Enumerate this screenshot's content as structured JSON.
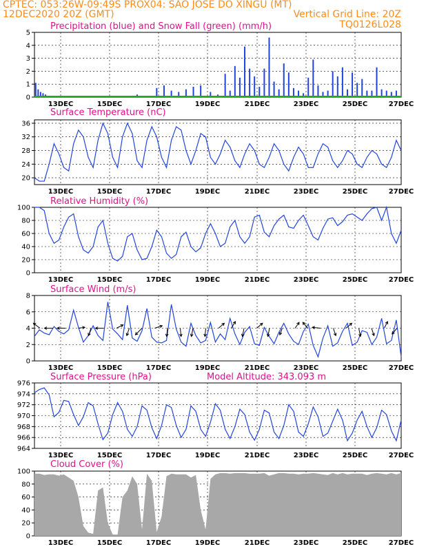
{
  "header": {
    "line1": "CPTEC:  053:26W-09:49S   PROX04: SAO JOSE DO XINGU (MT)",
    "line2_left": "12DEC2020 20Z (GMT)",
    "line2_right": "Vertical Grid Line: 20Z",
    "line3_right": "TQ0126L028"
  },
  "colors": {
    "header": "#ff8c1a",
    "title": "#e0118a",
    "series": "#2244dd",
    "snow": "#22aa22",
    "cloud": "#a8a8a8"
  },
  "date_labels": [
    "13DEC",
    "15DEC",
    "17DEC",
    "19DEC",
    "21DEC",
    "23DEC",
    "25DEC",
    "27DEC"
  ],
  "chart_data": [
    {
      "id": "precip",
      "type": "bar",
      "title": "Precipitation (blue) and Snow Fall (green) (mm/h)",
      "ylim": [
        0,
        5
      ],
      "yticks": [
        0,
        1,
        2,
        3,
        4,
        5
      ],
      "x_range": [
        0,
        15
      ],
      "grid": true,
      "series": [
        {
          "name": "Precipitation",
          "x": [
            0.05,
            0.15,
            0.25,
            0.35,
            0.45,
            0.55,
            3.9,
            4.2,
            5.0,
            5.3,
            5.6,
            5.9,
            6.2,
            6.5,
            6.8,
            7.2,
            7.5,
            7.8,
            8.0,
            8.2,
            8.4,
            8.6,
            8.8,
            9.0,
            9.2,
            9.4,
            9.6,
            9.8,
            10.0,
            10.2,
            10.4,
            10.6,
            10.8,
            11.0,
            11.2,
            11.4,
            11.6,
            11.8,
            12.0,
            12.2,
            12.4,
            12.6,
            12.8,
            13.0,
            13.2,
            13.4,
            13.6,
            13.8,
            14.0,
            14.2,
            14.4,
            14.6,
            14.8
          ],
          "values": [
            1.1,
            0.6,
            0.4,
            0.3,
            0.2,
            0.1,
            0.05,
            0.2,
            0.7,
            0.9,
            0.5,
            0.4,
            0.6,
            0.8,
            0.9,
            0.4,
            0.2,
            1.8,
            0.5,
            2.4,
            1.5,
            3.9,
            2.2,
            1.6,
            0.8,
            2.2,
            4.6,
            1.2,
            0.6,
            2.6,
            1.9,
            0.7,
            0.5,
            0.3,
            1.5,
            2.9,
            0.9,
            0.4,
            0.5,
            2.0,
            1.6,
            2.3,
            0.6,
            1.9,
            1.1,
            1.4,
            0.5,
            0.5,
            2.3,
            0.6,
            0.5,
            0.4,
            0.5
          ]
        },
        {
          "name": "Snow Fall",
          "values": [
            0
          ]
        }
      ]
    },
    {
      "id": "temp",
      "type": "line",
      "title": "Surface Temperature (nC)",
      "ylim": [
        18,
        37
      ],
      "yticks": [
        20,
        24,
        28,
        32,
        36
      ],
      "x_range": [
        0,
        15
      ],
      "grid": true,
      "series": [
        {
          "name": "Surface Temperature",
          "x": [
            0,
            0.2,
            0.4,
            0.6,
            0.8,
            1.0,
            1.2,
            1.4,
            1.6,
            1.8,
            2.0,
            2.2,
            2.4,
            2.6,
            2.8,
            3.0,
            3.2,
            3.4,
            3.6,
            3.8,
            4.0,
            4.2,
            4.4,
            4.6,
            4.8,
            5.0,
            5.2,
            5.4,
            5.6,
            5.8,
            6.0,
            6.2,
            6.4,
            6.6,
            6.8,
            7.0,
            7.2,
            7.4,
            7.6,
            7.8,
            8.0,
            8.2,
            8.4,
            8.6,
            8.8,
            9.0,
            9.2,
            9.4,
            9.6,
            9.8,
            10.0,
            10.2,
            10.4,
            10.6,
            10.8,
            11.0,
            11.2,
            11.4,
            11.6,
            11.8,
            12.0,
            12.2,
            12.4,
            12.6,
            12.8,
            13.0,
            13.2,
            13.4,
            13.6,
            13.8,
            14.0,
            14.2,
            14.4,
            14.6,
            14.8,
            15.0
          ],
          "values": [
            20,
            19,
            19,
            24,
            30,
            27,
            23,
            22,
            30,
            34,
            32,
            26,
            23,
            31,
            36,
            33,
            26,
            23,
            32,
            36,
            33,
            25,
            23,
            31,
            35,
            32,
            26,
            23,
            31,
            35,
            34,
            28,
            24,
            28,
            33,
            32,
            26,
            24,
            27,
            31,
            29,
            25,
            23,
            27,
            30,
            28,
            24,
            23,
            26,
            30,
            28,
            24,
            22,
            26,
            29,
            27,
            23,
            23,
            27,
            30,
            29,
            25,
            23,
            25,
            28,
            27,
            24,
            23,
            26,
            28,
            27,
            24,
            23,
            26,
            31,
            28
          ]
        }
      ]
    },
    {
      "id": "rh",
      "type": "line",
      "title": "Relative Humidity (%)",
      "ylim": [
        0,
        100
      ],
      "yticks": [
        0,
        20,
        40,
        60,
        80,
        100
      ],
      "x_range": [
        0,
        15
      ],
      "grid": true,
      "series": [
        {
          "name": "Relative Humidity",
          "x": [
            0,
            0.2,
            0.4,
            0.6,
            0.8,
            1.0,
            1.2,
            1.4,
            1.6,
            1.8,
            2.0,
            2.2,
            2.4,
            2.6,
            2.8,
            3.0,
            3.2,
            3.4,
            3.6,
            3.8,
            4.0,
            4.2,
            4.4,
            4.6,
            4.8,
            5.0,
            5.2,
            5.4,
            5.6,
            5.8,
            6.0,
            6.2,
            6.4,
            6.6,
            6.8,
            7.0,
            7.2,
            7.4,
            7.6,
            7.8,
            8.0,
            8.2,
            8.4,
            8.6,
            8.8,
            9.0,
            9.2,
            9.4,
            9.6,
            9.8,
            10.0,
            10.2,
            10.4,
            10.6,
            10.8,
            11.0,
            11.2,
            11.4,
            11.6,
            11.8,
            12.0,
            12.2,
            12.4,
            12.6,
            12.8,
            13.0,
            13.2,
            13.4,
            13.6,
            13.8,
            14.0,
            14.2,
            14.4,
            14.6,
            14.8,
            15.0
          ],
          "values": [
            100,
            100,
            95,
            60,
            45,
            50,
            70,
            85,
            90,
            55,
            35,
            30,
            40,
            70,
            80,
            45,
            22,
            18,
            25,
            55,
            60,
            35,
            20,
            22,
            40,
            65,
            55,
            30,
            22,
            28,
            55,
            62,
            40,
            32,
            38,
            60,
            75,
            60,
            40,
            45,
            70,
            80,
            55,
            45,
            55,
            85,
            88,
            62,
            55,
            72,
            82,
            88,
            70,
            68,
            80,
            88,
            72,
            55,
            50,
            68,
            82,
            84,
            72,
            78,
            88,
            90,
            85,
            80,
            90,
            98,
            100,
            80,
            100,
            60,
            45,
            65
          ]
        }
      ]
    },
    {
      "id": "wind",
      "type": "line",
      "title": "Surface Wind (m/s)",
      "ylim": [
        0,
        8
      ],
      "yticks": [
        0,
        2,
        4,
        6,
        8
      ],
      "x_range": [
        0,
        15
      ],
      "grid": true,
      "series": [
        {
          "name": "Surface Wind",
          "x": [
            0,
            0.2,
            0.4,
            0.6,
            0.8,
            1.0,
            1.2,
            1.4,
            1.6,
            1.8,
            2.0,
            2.2,
            2.4,
            2.6,
            2.8,
            3.0,
            3.2,
            3.4,
            3.6,
            3.8,
            4.0,
            4.2,
            4.4,
            4.6,
            4.8,
            5.0,
            5.2,
            5.4,
            5.6,
            5.8,
            6.0,
            6.2,
            6.4,
            6.6,
            6.8,
            7.0,
            7.2,
            7.4,
            7.6,
            7.8,
            8.0,
            8.2,
            8.4,
            8.6,
            8.8,
            9.0,
            9.2,
            9.4,
            9.6,
            9.8,
            10.0,
            10.2,
            10.4,
            10.6,
            10.8,
            11.0,
            11.2,
            11.4,
            11.6,
            11.8,
            12.0,
            12.2,
            12.4,
            12.6,
            12.8,
            13.0,
            13.2,
            13.4,
            13.6,
            13.8,
            14.0,
            14.2,
            14.4,
            14.6,
            14.8,
            15.0
          ],
          "values": [
            3,
            3.8,
            3.4,
            3.2,
            4.2,
            3.6,
            3.3,
            3.8,
            6.2,
            4.1,
            2.3,
            3.1,
            4.3,
            3.1,
            2.5,
            7.2,
            3.9,
            3.3,
            2.6,
            6.8,
            2.8,
            2.4,
            3.7,
            6.4,
            2.9,
            2.3,
            2.2,
            2.5,
            6.9,
            3.9,
            2.3,
            1.8,
            4.6,
            3.1,
            2.2,
            2.5,
            4.7,
            2.3,
            3.3,
            2.6,
            5.2,
            3.3,
            2.0,
            3.5,
            4.2,
            2.1,
            1.9,
            4.1,
            3.0,
            2.1,
            3.5,
            4.6,
            3.3,
            2.4,
            2.0,
            3.6,
            4.5,
            1.9,
            0.5,
            2.8,
            4.3,
            1.8,
            2.2,
            3.6,
            4.6,
            1.9,
            2.3,
            3.7,
            3.5,
            2.0,
            2.9,
            5.2,
            2.1,
            2.5,
            5.0,
            0.5
          ]
        }
      ],
      "arrows_uv": [
        [
          -0.8,
          0.6
        ],
        [
          -1,
          0
        ],
        [
          -1,
          0
        ],
        [
          0.8,
          0.1
        ],
        [
          -0.3,
          -0.9
        ],
        [
          -1,
          0
        ],
        [
          0.8,
          0.4
        ],
        [
          -0.3,
          -0.9
        ],
        [
          -0.8,
          -0.8
        ],
        [
          0.9,
          0.3
        ],
        [
          -0.1,
          -1
        ],
        [
          0.1,
          -1
        ],
        [
          -0.2,
          -1
        ],
        [
          -0.1,
          -1
        ],
        [
          0.7,
          0.6
        ],
        [
          0.5,
          0.8
        ],
        [
          -0.2,
          -1
        ],
        [
          0.7,
          0.6
        ],
        [
          -0.2,
          -1
        ],
        [
          -0.3,
          -0.8
        ],
        [
          0.5,
          0.7
        ],
        [
          -0.6,
          0.7
        ],
        [
          -1,
          0.1
        ],
        [
          0.3,
          -0.9
        ],
        [
          0.7,
          0.6
        ],
        [
          0.2,
          -1
        ],
        [
          0.3,
          -0.9
        ],
        [
          0.4,
          0.8
        ],
        [
          -0.6,
          -0.7
        ]
      ]
    },
    {
      "id": "pressure",
      "type": "line",
      "title": "Surface Pressure (hPa)",
      "annotation": "Model Altitude: 343.093 m",
      "ylim": [
        964,
        976
      ],
      "yticks": [
        964,
        966,
        968,
        970,
        972,
        974,
        976
      ],
      "x_range": [
        0,
        15
      ],
      "grid": true,
      "series": [
        {
          "name": "Surface Pressure",
          "x": [
            0,
            0.2,
            0.4,
            0.6,
            0.8,
            1.0,
            1.2,
            1.4,
            1.6,
            1.8,
            2.0,
            2.2,
            2.4,
            2.6,
            2.8,
            3.0,
            3.2,
            3.4,
            3.6,
            3.8,
            4.0,
            4.2,
            4.4,
            4.6,
            4.8,
            5.0,
            5.2,
            5.4,
            5.6,
            5.8,
            6.0,
            6.2,
            6.4,
            6.6,
            6.8,
            7.0,
            7.2,
            7.4,
            7.6,
            7.8,
            8.0,
            8.2,
            8.4,
            8.6,
            8.8,
            9.0,
            9.2,
            9.4,
            9.6,
            9.8,
            10.0,
            10.2,
            10.4,
            10.6,
            10.8,
            11.0,
            11.2,
            11.4,
            11.6,
            11.8,
            12.0,
            12.2,
            12.4,
            12.6,
            12.8,
            13.0,
            13.2,
            13.4,
            13.6,
            13.8,
            14.0,
            14.2,
            14.4,
            14.6,
            14.8,
            15.0
          ],
          "values": [
            974.2,
            974.8,
            975.1,
            973.8,
            969.8,
            970.6,
            972.8,
            972.6,
            970.2,
            968.2,
            969.8,
            972.4,
            971.8,
            968.5,
            965.6,
            966.8,
            970.2,
            972.4,
            970.8,
            967.5,
            966.2,
            968.0,
            971.8,
            971.0,
            967.8,
            965.8,
            968.2,
            972.0,
            971.5,
            968.2,
            966.0,
            967.5,
            971.8,
            970.8,
            967.5,
            966.2,
            968.8,
            972.2,
            971.0,
            967.5,
            965.8,
            968.0,
            971.2,
            970.2,
            967.0,
            965.5,
            967.5,
            971.0,
            970.5,
            967.0,
            965.8,
            968.2,
            972.0,
            970.8,
            967.0,
            966.2,
            968.5,
            971.6,
            969.8,
            966.2,
            966.8,
            969.0,
            971.2,
            969.2,
            965.4,
            966.8,
            969.2,
            970.8,
            968.0,
            966.0,
            967.8,
            971.0,
            970.2,
            967.2,
            965.4,
            969.2
          ]
        }
      ]
    },
    {
      "id": "cloud",
      "type": "area",
      "title": "Cloud Cover (%)",
      "ylim": [
        0,
        100
      ],
      "yticks": [
        0,
        20,
        40,
        60,
        80,
        100
      ],
      "x_range": [
        0,
        15
      ],
      "grid": true,
      "series": [
        {
          "name": "Cloud Cover",
          "x": [
            0,
            0.2,
            0.4,
            0.6,
            0.8,
            1.0,
            1.2,
            1.4,
            1.6,
            1.8,
            2.0,
            2.2,
            2.4,
            2.6,
            2.8,
            3.0,
            3.2,
            3.4,
            3.6,
            3.8,
            4.0,
            4.2,
            4.4,
            4.6,
            4.8,
            5.0,
            5.2,
            5.4,
            5.6,
            5.8,
            6.0,
            6.2,
            6.4,
            6.6,
            6.8,
            7.0,
            7.2,
            7.4,
            7.6,
            7.8,
            8.0,
            8.2,
            8.4,
            8.6,
            8.8,
            9.0,
            9.2,
            9.4,
            9.6,
            9.8,
            10.0,
            10.2,
            10.4,
            10.6,
            10.8,
            11.0,
            11.2,
            11.4,
            11.6,
            11.8,
            12.0,
            12.2,
            12.4,
            12.6,
            12.8,
            13.0,
            13.2,
            13.4,
            13.6,
            13.8,
            14.0,
            14.2,
            14.4,
            14.6,
            14.8,
            15.0
          ],
          "values": [
            96,
            96,
            94,
            95,
            95,
            93,
            95,
            90,
            85,
            60,
            15,
            5,
            3,
            70,
            75,
            20,
            2,
            2,
            60,
            70,
            92,
            80,
            10,
            96,
            85,
            6,
            30,
            92,
            96,
            95,
            95,
            95,
            90,
            94,
            40,
            10,
            88,
            95,
            97,
            97,
            96,
            97,
            97,
            97,
            96,
            96,
            96,
            97,
            93,
            95,
            97,
            97,
            96,
            96,
            95,
            96,
            96,
            97,
            96,
            95,
            94,
            97,
            95,
            97,
            95,
            96,
            96,
            96,
            94,
            96,
            97,
            96,
            95,
            97,
            95,
            97
          ]
        }
      ]
    }
  ]
}
